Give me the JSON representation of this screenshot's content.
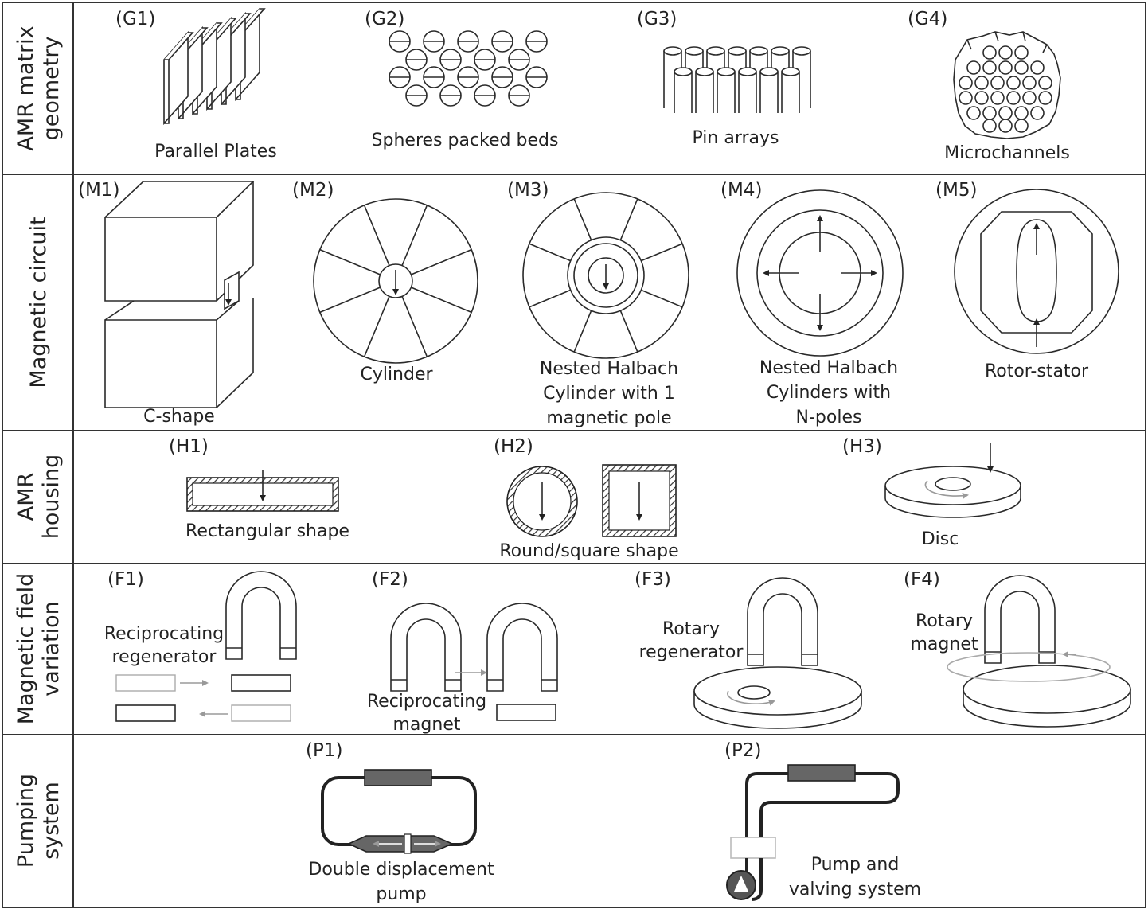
{
  "rows": [
    {
      "title": [
        "AMR matrix",
        "geometry"
      ]
    },
    {
      "title": [
        "Magnetic circuit"
      ]
    },
    {
      "title": [
        "AMR",
        "housing"
      ]
    },
    {
      "title": [
        "Magnetic field",
        "variation"
      ]
    },
    {
      "title": [
        "Pumping",
        "system"
      ]
    }
  ],
  "geometry": [
    {
      "code": "(G1)",
      "label": "Parallel Plates"
    },
    {
      "code": "(G2)",
      "label": "Spheres packed beds"
    },
    {
      "code": "(G3)",
      "label": "Pin arrays"
    },
    {
      "code": "(G4)",
      "label": "Microchannels"
    }
  ],
  "circuit": [
    {
      "code": "(M1)",
      "label": [
        "C-shape"
      ]
    },
    {
      "code": "(M2)",
      "label": [
        "Cylinder"
      ]
    },
    {
      "code": "(M3)",
      "label": [
        "Nested Halbach",
        "Cylinder with 1",
        "magnetic pole"
      ]
    },
    {
      "code": "(M4)",
      "label": [
        "Nested Halbach",
        "Cylinders with",
        "N-poles"
      ]
    },
    {
      "code": "(M5)",
      "label": [
        "Rotor-stator"
      ]
    }
  ],
  "housing": [
    {
      "code": "(H1)",
      "label": "Rectangular shape"
    },
    {
      "code": "(H2)",
      "label": "Round/square shape"
    },
    {
      "code": "(H3)",
      "label": "Disc"
    }
  ],
  "field": [
    {
      "code": "(F1)",
      "label": [
        "Reciprocating",
        "regenerator"
      ]
    },
    {
      "code": "(F2)",
      "label": [
        "Reciprocating",
        "magnet"
      ]
    },
    {
      "code": "(F3)",
      "label": [
        "Rotary",
        "regenerator"
      ]
    },
    {
      "code": "(F4)",
      "label": [
        "Rotary",
        "magnet"
      ]
    }
  ],
  "pumping": [
    {
      "code": "(P1)",
      "label": [
        "Double displacement",
        "pump"
      ]
    },
    {
      "code": "(P2)",
      "label": [
        "Pump and",
        "valving system"
      ]
    }
  ]
}
